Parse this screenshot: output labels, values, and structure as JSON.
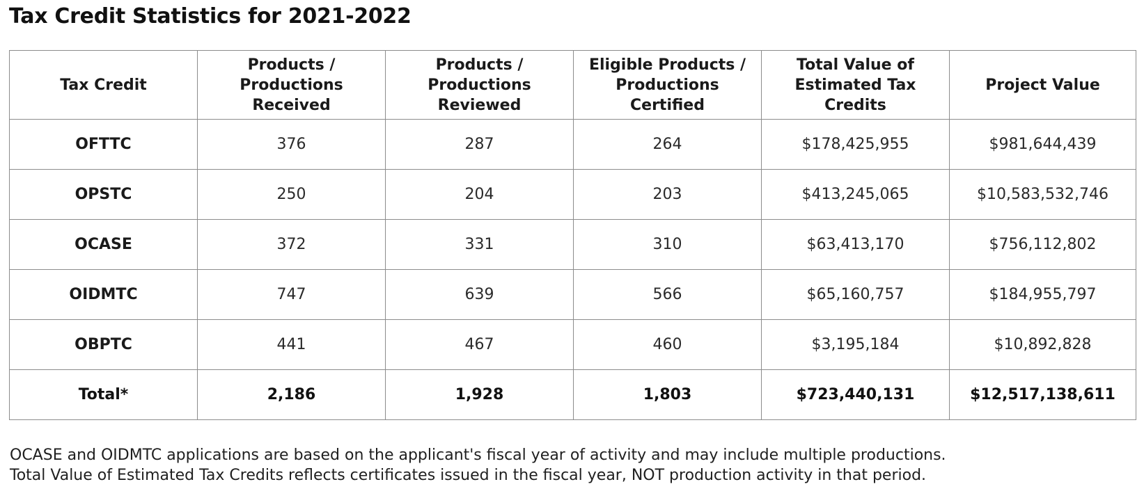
{
  "title": "Tax Credit Statistics for 2021-2022",
  "table": {
    "headers": [
      "Tax Credit",
      "Products / Productions Received",
      "Products / Productions Reviewed",
      "Eligible Products / Productions Certified",
      "Total Value of Estimated Tax Credits",
      "Project Value"
    ],
    "rows": [
      [
        "OFTTC",
        "376",
        "287",
        "264",
        "$178,425,955",
        "$981,644,439"
      ],
      [
        "OPSTC",
        "250",
        "204",
        "203",
        "$413,245,065",
        "$10,583,532,746"
      ],
      [
        "OCASE",
        "372",
        "331",
        "310",
        "$63,413,170",
        "$756,112,802"
      ],
      [
        "OIDMTC",
        "747",
        "639",
        "566",
        "$65,160,757",
        "$184,955,797"
      ],
      [
        "OBPTC",
        "441",
        "467",
        "460",
        "$3,195,184",
        "$10,892,828"
      ]
    ],
    "total_row": [
      "Total*",
      "2,186",
      "1,928",
      "1,803",
      "$723,440,131",
      "$12,517,138,611"
    ]
  },
  "notes": [
    "OCASE and OIDMTC applications are based on the applicant's fiscal year of activity and may include multiple productions.",
    "Total Value of Estimated Tax Credits reflects certificates issued in the fiscal year, NOT production activity in that period."
  ]
}
